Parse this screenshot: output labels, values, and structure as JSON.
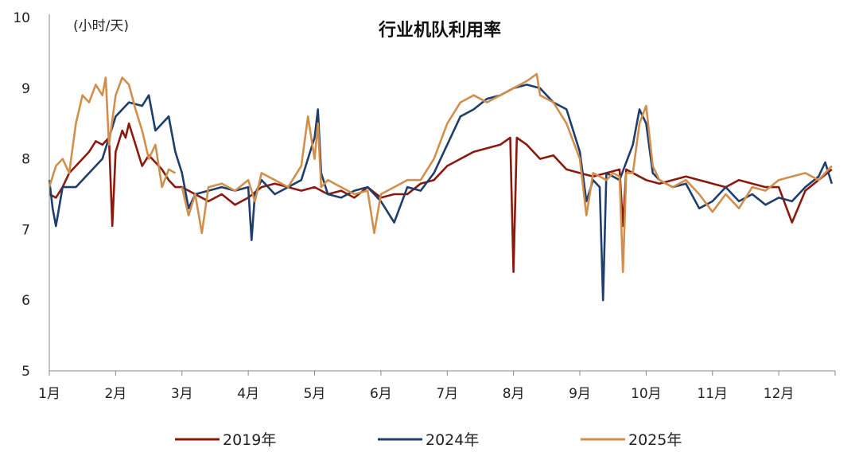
{
  "chart_data": {
    "type": "line",
    "title": "行业机队利用率",
    "unit_label": "(小时/天)",
    "ylim": [
      5,
      10
    ],
    "y_ticks": [
      "5",
      "6",
      "7",
      "8",
      "9",
      "10"
    ],
    "x_ticks": [
      "1月",
      "2月",
      "3月",
      "4月",
      "5月",
      "6月",
      "7月",
      "8月",
      "9月",
      "10月",
      "11月",
      "12月"
    ],
    "grid": false,
    "legend_position": "bottom",
    "x_unit": "month (1.0 = Jan 1)",
    "series": [
      {
        "name": "2019年",
        "color": "#8B1A0E",
        "x": [
          1.0,
          1.1,
          1.2,
          1.3,
          1.4,
          1.5,
          1.6,
          1.7,
          1.8,
          1.9,
          1.95,
          2.0,
          2.1,
          2.15,
          2.2,
          2.3,
          2.4,
          2.5,
          2.6,
          2.7,
          2.8,
          2.9,
          3.0,
          3.2,
          3.4,
          3.6,
          3.8,
          4.0,
          4.2,
          4.4,
          4.6,
          4.8,
          5.0,
          5.2,
          5.4,
          5.6,
          5.8,
          6.0,
          6.2,
          6.4,
          6.6,
          6.8,
          7.0,
          7.2,
          7.4,
          7.6,
          7.8,
          7.95,
          8.0,
          8.05,
          8.2,
          8.4,
          8.6,
          8.8,
          9.0,
          9.2,
          9.4,
          9.6,
          9.65,
          9.7,
          9.8,
          9.9,
          10.0,
          10.2,
          10.4,
          10.6,
          10.8,
          11.0,
          11.2,
          11.4,
          11.6,
          11.8,
          12.0,
          12.2,
          12.4,
          12.6,
          12.8
        ],
        "y": [
          7.5,
          7.45,
          7.6,
          7.8,
          7.9,
          8.0,
          8.1,
          8.25,
          8.2,
          8.3,
          7.05,
          8.1,
          8.4,
          8.3,
          8.5,
          8.2,
          7.9,
          8.05,
          7.95,
          7.85,
          7.7,
          7.6,
          7.6,
          7.5,
          7.4,
          7.5,
          7.35,
          7.45,
          7.6,
          7.65,
          7.6,
          7.55,
          7.6,
          7.5,
          7.55,
          7.45,
          7.6,
          7.45,
          7.5,
          7.5,
          7.65,
          7.7,
          7.9,
          8.0,
          8.1,
          8.15,
          8.2,
          8.3,
          6.4,
          8.3,
          8.2,
          8.0,
          8.05,
          7.85,
          7.8,
          7.75,
          7.8,
          7.85,
          7.05,
          7.85,
          7.8,
          7.75,
          7.7,
          7.65,
          7.7,
          7.75,
          7.7,
          7.65,
          7.6,
          7.7,
          7.65,
          7.6,
          7.6,
          7.1,
          7.55,
          7.7,
          7.85
        ]
      },
      {
        "name": "2024年",
        "color": "#1F3E6C",
        "x": [
          1.0,
          1.05,
          1.1,
          1.2,
          1.4,
          1.6,
          1.8,
          2.0,
          2.2,
          2.4,
          2.5,
          2.6,
          2.8,
          2.9,
          3.0,
          3.1,
          3.2,
          3.4,
          3.6,
          3.8,
          4.0,
          4.05,
          4.1,
          4.2,
          4.4,
          4.6,
          4.8,
          5.0,
          5.05,
          5.1,
          5.2,
          5.4,
          5.6,
          5.8,
          6.0,
          6.2,
          6.4,
          6.6,
          6.8,
          7.0,
          7.2,
          7.4,
          7.6,
          7.8,
          8.0,
          8.2,
          8.4,
          8.6,
          8.8,
          9.0,
          9.1,
          9.2,
          9.3,
          9.35,
          9.4,
          9.6,
          9.8,
          9.9,
          10.0,
          10.1,
          10.2,
          10.4,
          10.6,
          10.8,
          11.0,
          11.2,
          11.4,
          11.6,
          11.8,
          12.0,
          12.2,
          12.4,
          12.6,
          12.7,
          12.8
        ],
        "y": [
          7.7,
          7.3,
          7.05,
          7.6,
          7.6,
          7.8,
          8.0,
          8.6,
          8.8,
          8.75,
          8.9,
          8.4,
          8.6,
          8.1,
          7.8,
          7.3,
          7.5,
          7.55,
          7.6,
          7.55,
          7.6,
          6.85,
          7.5,
          7.7,
          7.5,
          7.6,
          7.7,
          8.3,
          8.7,
          7.8,
          7.5,
          7.45,
          7.55,
          7.6,
          7.4,
          7.1,
          7.6,
          7.55,
          7.8,
          8.2,
          8.6,
          8.7,
          8.85,
          8.9,
          9.0,
          9.05,
          9.0,
          8.8,
          8.7,
          8.1,
          7.4,
          7.7,
          7.6,
          6.0,
          7.8,
          7.7,
          8.2,
          8.7,
          8.5,
          7.8,
          7.7,
          7.6,
          7.65,
          7.3,
          7.4,
          7.6,
          7.4,
          7.5,
          7.35,
          7.45,
          7.4,
          7.6,
          7.75,
          7.95,
          7.65
        ]
      },
      {
        "name": "2025年",
        "color": "#D08F4C",
        "x": [
          1.0,
          1.1,
          1.2,
          1.3,
          1.4,
          1.5,
          1.6,
          1.7,
          1.8,
          1.85,
          1.9,
          2.0,
          2.1,
          2.2,
          2.3,
          2.4,
          2.5,
          2.6,
          2.7,
          2.8,
          2.9
        ],
        "y": [
          7.6,
          7.9,
          8.0,
          7.8,
          8.5,
          8.9,
          8.8,
          9.05,
          8.9,
          9.15,
          8.2,
          8.9,
          9.15,
          9.05,
          8.7,
          8.4,
          8.0,
          8.2,
          7.6,
          7.85,
          7.8
        ]
      },
      {
        "name": "2025年",
        "color": "#D08F4C",
        "x": [
          3.0,
          3.1,
          3.2,
          3.3,
          3.4,
          3.6,
          3.8,
          4.0,
          4.1,
          4.2,
          4.4,
          4.6,
          4.8,
          4.9,
          5.0,
          5.05,
          5.1,
          5.2,
          5.4,
          5.6,
          5.8,
          5.9,
          6.0,
          6.2,
          6.4,
          6.6,
          6.8,
          7.0,
          7.2,
          7.4,
          7.6,
          7.8,
          8.0,
          8.2,
          8.35,
          8.4,
          8.6,
          8.8,
          9.0,
          9.1,
          9.2,
          9.4,
          9.5,
          9.6,
          9.65,
          9.7,
          9.8,
          9.9,
          10.0,
          10.1,
          10.2,
          10.4,
          10.6,
          10.8,
          11.0,
          11.2,
          11.4,
          11.6,
          11.8,
          12.0,
          12.2,
          12.4,
          12.6,
          12.8
        ],
        "y": [
          7.6,
          7.2,
          7.5,
          6.95,
          7.6,
          7.65,
          7.55,
          7.7,
          7.4,
          7.8,
          7.7,
          7.6,
          7.9,
          8.6,
          8.0,
          8.5,
          7.6,
          7.7,
          7.6,
          7.5,
          7.55,
          6.95,
          7.5,
          7.6,
          7.7,
          7.7,
          8.0,
          8.5,
          8.8,
          8.9,
          8.8,
          8.9,
          9.0,
          9.1,
          9.2,
          8.9,
          8.8,
          8.5,
          8.0,
          7.2,
          7.8,
          7.7,
          7.8,
          7.75,
          6.4,
          7.8,
          7.8,
          8.5,
          8.75,
          7.9,
          7.7,
          7.6,
          7.7,
          7.5,
          7.25,
          7.5,
          7.3,
          7.6,
          7.55,
          7.7,
          7.75,
          7.8,
          7.7,
          7.9
        ]
      }
    ]
  }
}
